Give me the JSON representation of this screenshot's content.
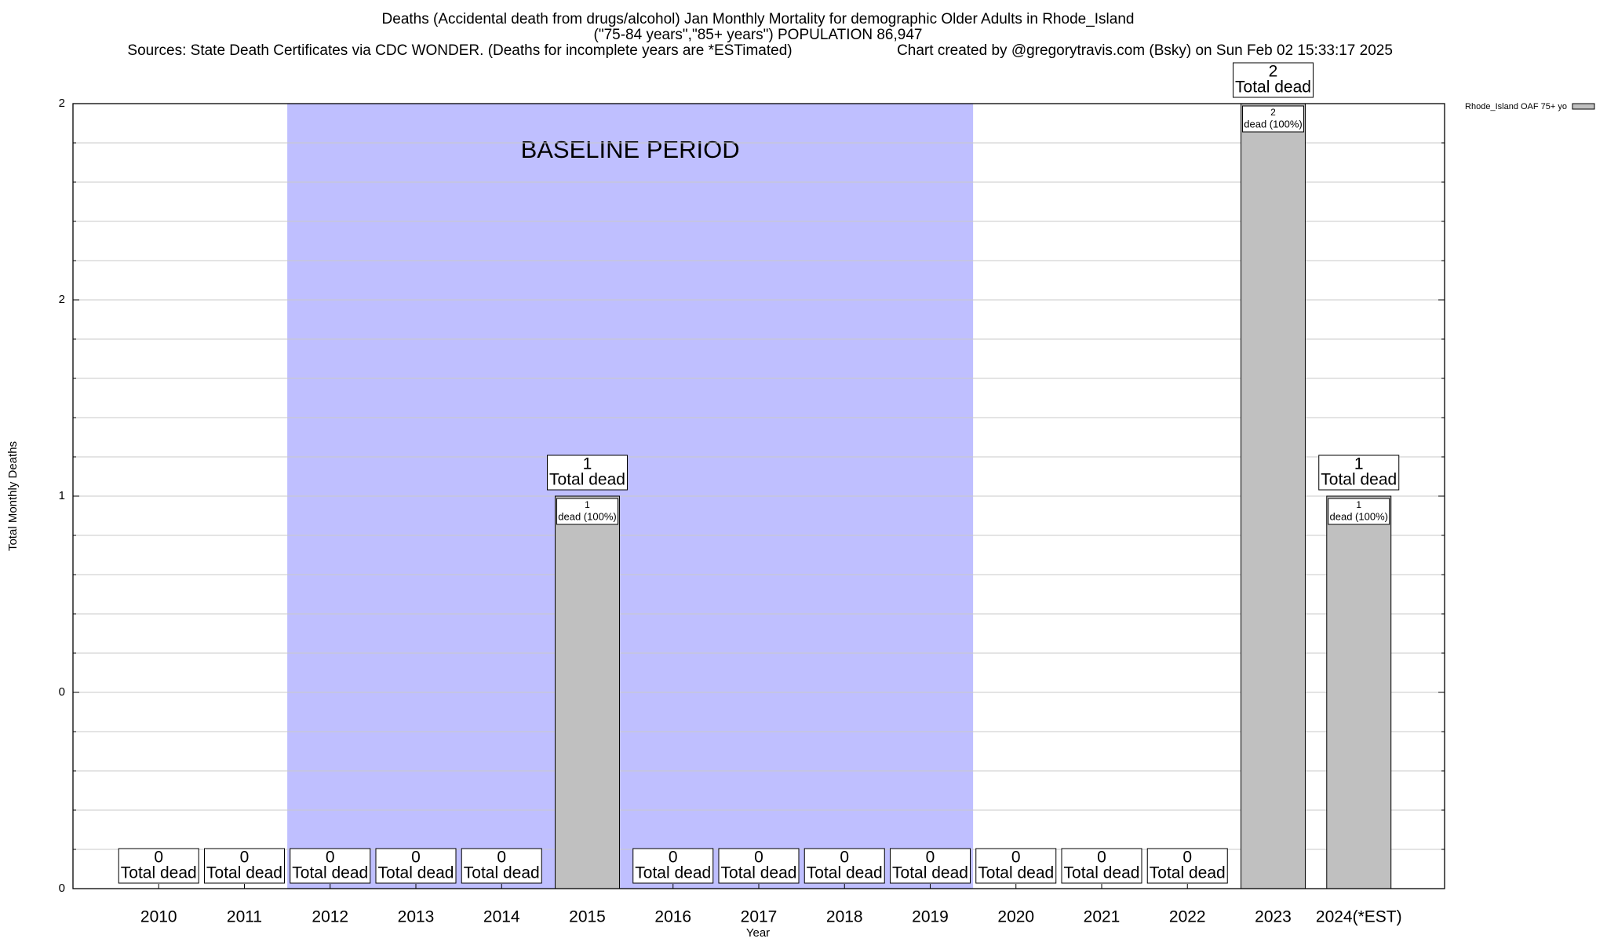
{
  "chart_data": {
    "type": "bar",
    "title": "Deaths (Accidental death from drugs/alcohol) Jan Monthly Mortality for demographic Older Adults in Rhode_Island",
    "subtitle": "(\"75-84 years\",\"85+ years\") POPULATION 86,947",
    "sources": "Sources: State Death Certificates via CDC WONDER. (Deaths for incomplete years are *ESTimated)",
    "credit": "Chart created by @gregorytravis.com (Bsky) on Sun Feb 02 15:33:17 2025",
    "x_label": "Year",
    "y_label": "Total Monthly Deaths",
    "categories": [
      "2010",
      "2011",
      "2012",
      "2013",
      "2014",
      "2015",
      "2016",
      "2017",
      "2018",
      "2019",
      "2020",
      "2021",
      "2022",
      "2023",
      "2024(*EST)"
    ],
    "series": [
      {
        "name": "Rhode_Island OAF 75+ yo",
        "color": "#c0c0c0",
        "values": [
          0,
          0,
          0,
          0,
          0,
          1,
          0,
          0,
          0,
          0,
          0,
          0,
          0,
          2,
          1
        ]
      }
    ],
    "total_label": "Total dead",
    "inner_label": "dead (100%)",
    "baseline": {
      "label": "BASELINE PERIOD",
      "start": "2012",
      "end": "2019",
      "color": "#bfbfff"
    },
    "ylim": [
      0,
      2
    ],
    "yticks": [
      0,
      {
        "value": 0.5,
        "label": "0"
      },
      1,
      {
        "value": 1.5,
        "label": "2"
      },
      2
    ],
    "grid": true,
    "legend": "top-right"
  }
}
